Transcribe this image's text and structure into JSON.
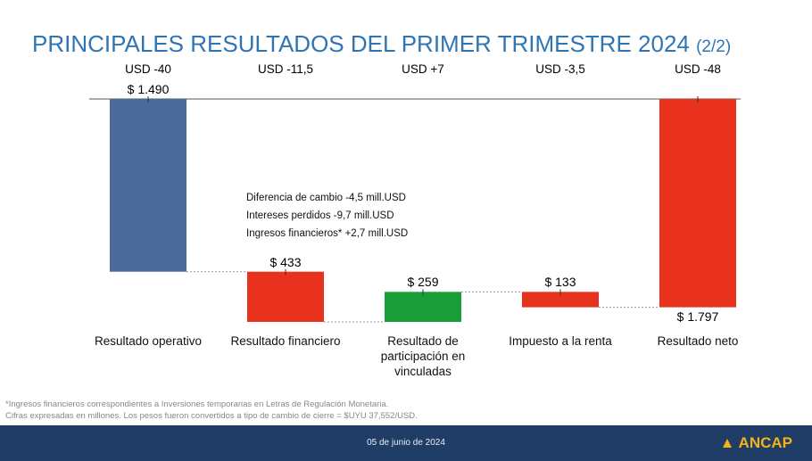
{
  "chart_data": {
    "type": "waterfall",
    "title": "PRINCIPALES RESULTADOS DEL PRIMER TRIMESTRE 2024",
    "title_suffix": "(2/2)",
    "categories": [
      "Resultado operativo",
      "Resultado financiero",
      "Resultado de participación en vinculadas",
      "Impuesto a la renta",
      "Resultado neto"
    ],
    "values": [
      -1490,
      -433,
      259,
      -133,
      -1797
    ],
    "value_labels": [
      "$ 1.490",
      "$ 433",
      "$ 259",
      "$ 133",
      "$ 1.797"
    ],
    "top_labels": [
      "USD -40",
      "USD -11,5",
      "USD +7",
      "USD -3,5",
      "USD -48"
    ],
    "colors": [
      "#4a6a9b",
      "#e8321e",
      "#1a9e3a",
      "#e8321e",
      "#e8321e"
    ],
    "annotations": [
      "Diferencia de cambio -4,5 mill.USD",
      "Intereses perdidos -9,7 mill.USD",
      "Ingresos financieros* +2,7 mill.USD"
    ]
  },
  "footnotes": [
    "*Ingresos financieros correspondientes a Inversiones temporarias en Letras de Regulación Monetaria.",
    "Cifras expresadas en millones. Los pesos fueron convertidos a tipo de cambio de cierre = $UYU 37,552/USD."
  ],
  "footer": {
    "date": "05 de junio de 2024",
    "logo": "ANCAP"
  }
}
